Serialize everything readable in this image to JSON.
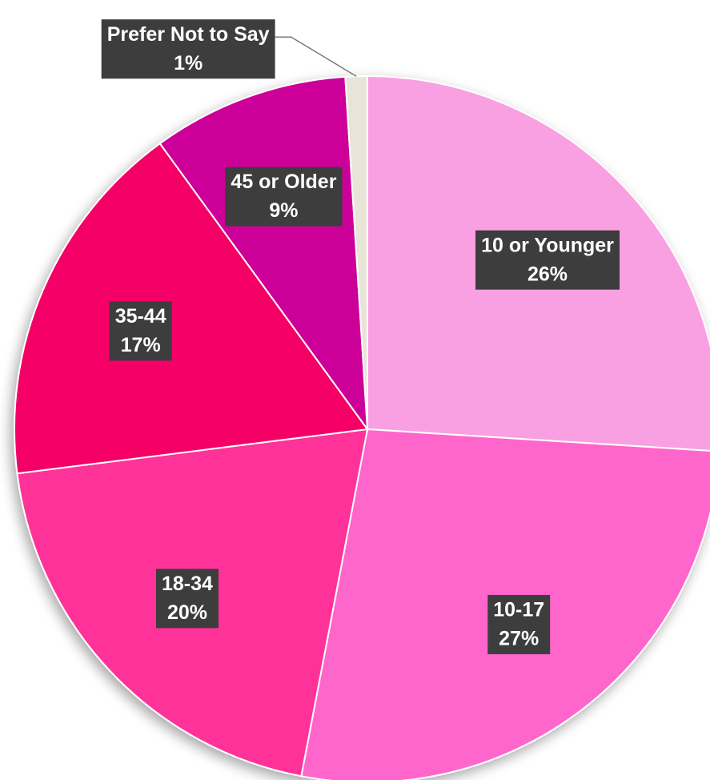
{
  "chart_data": {
    "type": "pie",
    "categories": [
      "10 or Younger",
      "10-17",
      "18-34",
      "35-44",
      "45 or Older",
      "Prefer Not to Say"
    ],
    "values": [
      26,
      27,
      20,
      17,
      9,
      1
    ],
    "value_labels": [
      "26%",
      "27%",
      "20%",
      "17%",
      "9%",
      "1%"
    ],
    "colors": [
      "#f9a0e2",
      "#ff66cc",
      "#ff3399",
      "#f50066",
      "#cc0099",
      "#e8e4d8"
    ]
  }
}
